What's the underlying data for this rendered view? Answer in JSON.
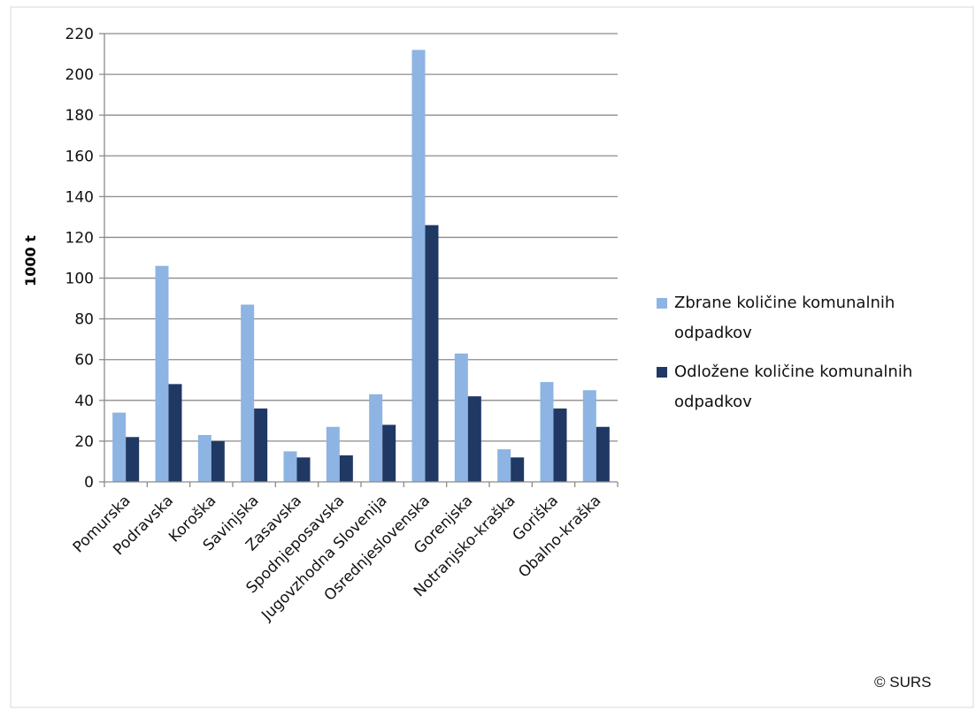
{
  "header": {
    "title_fragment": ""
  },
  "chart_data": {
    "type": "bar",
    "title": "",
    "xlabel": "",
    "ylabel": "1000 t",
    "ylim": [
      0,
      220
    ],
    "yticks": [
      0,
      20,
      40,
      60,
      80,
      100,
      120,
      140,
      160,
      180,
      200,
      220
    ],
    "grid": true,
    "legend_position": "right",
    "categories": [
      "Pomurska",
      "Podravska",
      "Koroška",
      "Savinjska",
      "Zasavska",
      "Spodnjeposavska",
      "Jugovzhodna Slovenija",
      "Osrednjeslovenska",
      "Gorenjska",
      "Notranjsko-kraška",
      "Goriška",
      "Obalno-kraška"
    ],
    "series": [
      {
        "name": "Zbrane količine komunalnih odpadkov",
        "color": "#8db4e2",
        "values": [
          34,
          106,
          23,
          87,
          15,
          27,
          43,
          212,
          63,
          16,
          49,
          45
        ]
      },
      {
        "name": "Odložene količine komunalnih odpadkov",
        "color": "#1f3864",
        "values": [
          22,
          48,
          20,
          36,
          12,
          13,
          28,
          126,
          42,
          12,
          36,
          27
        ]
      }
    ],
    "source": "© SURS"
  }
}
